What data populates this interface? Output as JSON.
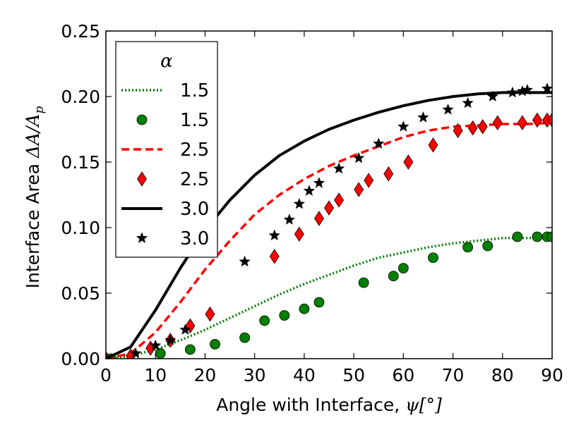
{
  "chart_data": {
    "type": "line",
    "xlabel_prefix": "Angle with Interface, ",
    "xlabel_math": "ψ[°]",
    "ylabel_prefix": "Interface Area ",
    "ylabel_math": "ΔA/A",
    "ylabel_sub": "p",
    "xlim": [
      0,
      90
    ],
    "ylim": [
      0,
      0.25
    ],
    "xticks": [
      0,
      10,
      20,
      30,
      40,
      50,
      60,
      70,
      80,
      90
    ],
    "yticks": [
      0,
      0.05,
      0.1,
      0.15,
      0.2,
      0.25
    ],
    "ytick_labels": [
      "0.00",
      "0.05",
      "0.10",
      "0.15",
      "0.20",
      "0.25"
    ],
    "legend_title": "α",
    "legend_placement": "upper-left",
    "colors": {
      "green": "#007f00",
      "red": "#ff0000",
      "black": "#000000",
      "marker_edge": "#000000"
    },
    "series": [
      {
        "name": "line-1.5",
        "label": "1.5",
        "style": "dotted",
        "color": "#007f00",
        "x": [
          0,
          5,
          10,
          15,
          20,
          25,
          30,
          35,
          40,
          45,
          50,
          55,
          60,
          65,
          70,
          75,
          80,
          85,
          90
        ],
        "y": [
          0,
          0.002,
          0.007,
          0.014,
          0.022,
          0.031,
          0.04,
          0.049,
          0.057,
          0.064,
          0.071,
          0.077,
          0.081,
          0.085,
          0.088,
          0.09,
          0.092,
          0.092,
          0.093
        ]
      },
      {
        "name": "markers-1.5",
        "label": "1.5",
        "style": "circle",
        "color": "#007f00",
        "x": [
          0,
          1,
          11,
          17,
          22,
          28,
          32,
          36,
          40,
          43,
          52,
          58,
          60,
          66,
          73,
          77,
          83,
          87,
          89,
          90
        ],
        "y": [
          0,
          0,
          0.004,
          0.007,
          0.011,
          0.016,
          0.029,
          0.033,
          0.038,
          0.043,
          0.058,
          0.063,
          0.069,
          0.077,
          0.085,
          0.086,
          0.093,
          0.093,
          0.093,
          0.093
        ]
      },
      {
        "name": "line-2.5",
        "label": "2.5",
        "style": "dashed",
        "color": "#ff0000",
        "x": [
          0,
          5,
          10,
          15,
          20,
          25,
          30,
          35,
          40,
          45,
          50,
          55,
          60,
          65,
          70,
          75,
          80,
          85,
          90
        ],
        "y": [
          0,
          0.004,
          0.02,
          0.043,
          0.068,
          0.09,
          0.11,
          0.125,
          0.137,
          0.147,
          0.155,
          0.162,
          0.169,
          0.174,
          0.177,
          0.178,
          0.179,
          0.179,
          0.18
        ]
      },
      {
        "name": "markers-2.5",
        "label": "2.5",
        "style": "diamond",
        "color": "#ff0000",
        "x": [
          0,
          5,
          9,
          13,
          17,
          21,
          34,
          39,
          43,
          45,
          47,
          51,
          53,
          57,
          61,
          66,
          71,
          74,
          76,
          79,
          84,
          87,
          89,
          90
        ],
        "y": [
          0,
          0.002,
          0.008,
          0.014,
          0.025,
          0.034,
          0.078,
          0.095,
          0.107,
          0.115,
          0.121,
          0.129,
          0.136,
          0.141,
          0.15,
          0.163,
          0.174,
          0.176,
          0.177,
          0.18,
          0.18,
          0.182,
          0.182,
          0.182
        ]
      },
      {
        "name": "line-3.0",
        "label": "3.0",
        "style": "solid",
        "color": "#000000",
        "x": [
          0,
          5,
          10,
          15,
          20,
          25,
          30,
          35,
          40,
          45,
          50,
          55,
          60,
          65,
          70,
          75,
          80,
          85,
          90
        ],
        "y": [
          0,
          0.009,
          0.037,
          0.069,
          0.098,
          0.121,
          0.14,
          0.155,
          0.166,
          0.175,
          0.182,
          0.188,
          0.193,
          0.197,
          0.2,
          0.202,
          0.203,
          0.203,
          0.203
        ]
      },
      {
        "name": "markers-3.0",
        "label": "3.0",
        "style": "star",
        "color": "#000000",
        "x": [
          0,
          6,
          10,
          13,
          16,
          28,
          34,
          37,
          39,
          41,
          43,
          47,
          51,
          55,
          60,
          64,
          69,
          73,
          78,
          82,
          84,
          85,
          89
        ],
        "y": [
          0,
          0.004,
          0.01,
          0.014,
          0.022,
          0.074,
          0.094,
          0.106,
          0.118,
          0.128,
          0.134,
          0.145,
          0.153,
          0.164,
          0.177,
          0.184,
          0.19,
          0.195,
          0.2,
          0.203,
          0.204,
          0.205,
          0.206
        ]
      }
    ]
  }
}
